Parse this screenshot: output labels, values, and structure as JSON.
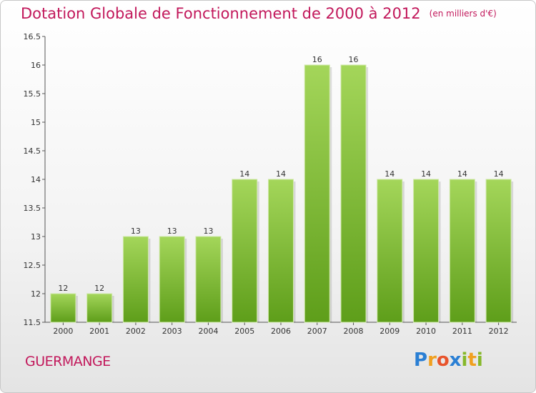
{
  "chart_data": {
    "type": "bar",
    "title": "Dotation Globale de Fonctionnement de 2000 à 2012",
    "subtitle": "(en milliers d'€)",
    "categories": [
      "2000",
      "2001",
      "2002",
      "2003",
      "2004",
      "2005",
      "2006",
      "2007",
      "2008",
      "2009",
      "2010",
      "2011",
      "2012"
    ],
    "values": [
      12,
      12,
      13,
      13,
      13,
      14,
      14,
      16,
      16,
      14,
      14,
      14,
      14
    ],
    "data_labels": [
      "12",
      "12",
      "13",
      "13",
      "13",
      "14",
      "14",
      "16",
      "16",
      "14",
      "14",
      "14",
      "14"
    ],
    "yticks": [
      "11.5",
      "12",
      "12.5",
      "13",
      "13.5",
      "14",
      "14.5",
      "15",
      "15.5",
      "16",
      "16.5"
    ],
    "ylim": [
      11.5,
      16.5
    ],
    "xlabel": "",
    "ylabel": "",
    "grid": false,
    "bar_color_top": "#a4d65a",
    "bar_color_bottom": "#5e9e1a"
  },
  "commune": "GUERMANGE",
  "logo": {
    "p": "P",
    "r": "r",
    "o": "o",
    "x": "x",
    "i": "i",
    "t": "t",
    "i2": "i"
  }
}
